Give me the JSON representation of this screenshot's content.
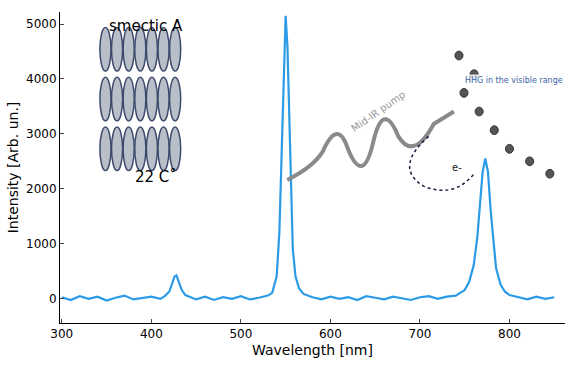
{
  "chart_data": {
    "type": "line",
    "x_label": "Wavelength [nm]",
    "y_label": "Intensity [Arb. un.]",
    "annotations": [
      "smectic A",
      "22 C˚",
      "Mid-IR pump",
      "HHG in the visible range",
      "e-"
    ],
    "color": "#2b9be8",
    "xlim": [
      298,
      862
    ],
    "ylim": [
      -450,
      5220
    ],
    "xticks": [
      300,
      400,
      500,
      600,
      700,
      800
    ],
    "yticks": [
      0,
      1000,
      2000,
      3000,
      4000,
      5000
    ],
    "grid": false,
    "x": [
      300,
      310,
      320,
      330,
      340,
      350,
      360,
      370,
      380,
      390,
      400,
      410,
      415,
      420,
      423,
      426,
      428,
      431,
      434,
      438,
      445,
      450,
      460,
      470,
      480,
      490,
      500,
      510,
      520,
      530,
      535,
      540,
      543,
      546,
      548,
      550,
      552,
      554,
      556,
      558,
      561,
      565,
      570,
      580,
      590,
      600,
      610,
      620,
      630,
      640,
      650,
      660,
      670,
      680,
      690,
      700,
      710,
      720,
      730,
      740,
      750,
      755,
      760,
      764,
      767,
      770,
      773,
      776,
      779,
      782,
      785,
      790,
      795,
      800,
      810,
      820,
      830,
      840,
      850
    ],
    "values": [
      20,
      -30,
      40,
      -10,
      30,
      -40,
      10,
      50,
      -20,
      0,
      30,
      -10,
      40,
      120,
      250,
      400,
      420,
      300,
      150,
      60,
      10,
      -20,
      30,
      -30,
      20,
      -10,
      40,
      -20,
      10,
      50,
      100,
      400,
      1200,
      2800,
      4200,
      5150,
      4600,
      3200,
      1800,
      900,
      400,
      180,
      80,
      20,
      -20,
      30,
      -10,
      20,
      -30,
      40,
      10,
      -20,
      30,
      0,
      -30,
      20,
      40,
      -10,
      30,
      50,
      150,
      300,
      600,
      1100,
      1700,
      2300,
      2550,
      2300,
      1600,
      1000,
      550,
      250,
      120,
      60,
      20,
      -20,
      30,
      -10,
      20
    ]
  }
}
